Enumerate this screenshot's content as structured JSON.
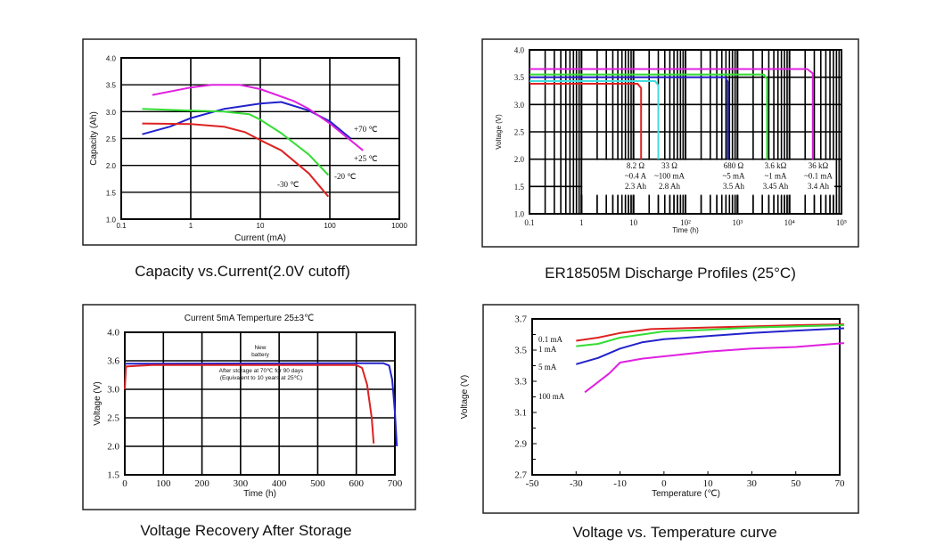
{
  "chart_data": [
    {
      "type": "line",
      "caption": "Capacity vs.Current(2.0V cutoff)",
      "title": "",
      "xlabel": "Current (mA)",
      "ylabel": "Capacity (Ah)",
      "x_scale": "log",
      "xlim": [
        0.1,
        1000
      ],
      "ylim": [
        1.0,
        4.0
      ],
      "xticks": [
        0.1,
        1,
        10,
        100,
        1000
      ],
      "xtick_labels": [
        "0.1",
        "1",
        "10",
        "100",
        "1000"
      ],
      "yticks": [
        1.0,
        1.5,
        2.0,
        2.5,
        3.0,
        3.5,
        4.0
      ],
      "ytick_labels": [
        "1.0",
        "1.5",
        "2.0",
        "2.5",
        "3.0",
        "3.5",
        "4.0"
      ],
      "grid": true,
      "series": [
        {
          "name": "+70 ℃",
          "color": "#2222cc",
          "points": [
            [
              0.2,
              2.58
            ],
            [
              0.5,
              2.72
            ],
            [
              1,
              2.88
            ],
            [
              3,
              3.05
            ],
            [
              10,
              3.15
            ],
            [
              20,
              3.18
            ],
            [
              50,
              3.02
            ],
            [
              100,
              2.82
            ],
            [
              200,
              2.5
            ]
          ]
        },
        {
          "name": "+25 ℃",
          "color": "#e020e0",
          "points": [
            [
              0.28,
              3.31
            ],
            [
              1,
              3.45
            ],
            [
              2,
              3.5
            ],
            [
              5,
              3.5
            ],
            [
              10,
              3.42
            ],
            [
              30,
              3.2
            ],
            [
              50,
              3.05
            ],
            [
              100,
              2.78
            ],
            [
              300,
              2.28
            ]
          ]
        },
        {
          "name": "-20 ℃",
          "color": "#33dd33",
          "points": [
            [
              0.2,
              3.05
            ],
            [
              1,
              3.02
            ],
            [
              3,
              3.0
            ],
            [
              7,
              2.95
            ],
            [
              10,
              2.85
            ],
            [
              20,
              2.6
            ],
            [
              50,
              2.2
            ],
            [
              95,
              1.82
            ]
          ]
        },
        {
          "name": "-30 ℃",
          "color": "#dd2222",
          "points": [
            [
              0.2,
              2.78
            ],
            [
              1,
              2.77
            ],
            [
              3,
              2.72
            ],
            [
              6,
              2.62
            ],
            [
              10,
              2.47
            ],
            [
              20,
              2.28
            ],
            [
              50,
              1.85
            ],
            [
              95,
              1.42
            ]
          ]
        }
      ]
    },
    {
      "type": "line",
      "caption": "ER18505M Discharge Profiles (25°C)",
      "title": "",
      "xlabel": "Time (h)",
      "ylabel": "Voltage (V)",
      "x_scale": "log",
      "xlim": [
        0.1,
        100000
      ],
      "ylim": [
        1.0,
        4.0
      ],
      "xticks": [
        0.1,
        1,
        10,
        100,
        1000,
        10000,
        100000
      ],
      "xtick_labels": [
        "0.1",
        "1",
        "10",
        "10²",
        "10³",
        "10⁴",
        "10⁵"
      ],
      "yticks": [
        1.0,
        1.5,
        2.0,
        2.5,
        3.0,
        3.5,
        4.0
      ],
      "ytick_labels": [
        "1.0",
        "1.5",
        "2.0",
        "2.5",
        "3.0",
        "3.5",
        "4.0"
      ],
      "grid": true,
      "series": [
        {
          "color": "#dd2222",
          "points": [
            [
              0.1,
              3.38
            ],
            [
              12,
              3.38
            ],
            [
              14,
              3.3
            ],
            [
              14,
              2.0
            ]
          ],
          "annotation": [
            "8.2 Ω",
            "~0.4 A",
            "2.3 Ah"
          ]
        },
        {
          "color": "#44dddd",
          "points": [
            [
              0.1,
              3.43
            ],
            [
              26,
              3.43
            ],
            [
              30,
              3.35
            ],
            [
              30,
              2.0
            ]
          ],
          "annotation": [
            "33 Ω",
            "~100 mA",
            "2.8 Ah"
          ]
        },
        {
          "color": "#2222cc",
          "points": [
            [
              0.1,
              3.5
            ],
            [
              580,
              3.5
            ],
            [
              650,
              3.42
            ],
            [
              650,
              2.0
            ]
          ],
          "annotation": [
            "680 Ω",
            "~5 mA",
            "3.5 Ah"
          ]
        },
        {
          "color": "#33dd33",
          "points": [
            [
              0.1,
              3.55
            ],
            [
              3200,
              3.55
            ],
            [
              3700,
              3.47
            ],
            [
              3700,
              2.0
            ]
          ],
          "annotation": [
            "3.6 kΩ",
            "~1 mA",
            "3.45 Ah"
          ]
        },
        {
          "color": "#e020e0",
          "points": [
            [
              0.1,
              3.65
            ],
            [
              22000,
              3.65
            ],
            [
              28000,
              3.57
            ],
            [
              28000,
              2.0
            ]
          ],
          "annotation": [
            "36 kΩ",
            "~0.1 mA",
            "3.4 Ah"
          ]
        }
      ]
    },
    {
      "type": "line",
      "caption": "Voltage Recovery After Storage",
      "title": "Current 5mA  Temperture 25±3℃",
      "xlabel": "Time (h)",
      "ylabel": "Voltage (V)",
      "x_scale": "linear",
      "xlim": [
        0,
        700
      ],
      "y_scale": "tick-spaced",
      "ylim": [
        1.5,
        4.0
      ],
      "xticks": [
        0,
        100,
        200,
        300,
        400,
        500,
        600,
        700
      ],
      "xtick_labels": [
        "0",
        "100",
        "200",
        "300",
        "400",
        "500",
        "600",
        "700"
      ],
      "yticks": [
        1.5,
        2.0,
        2.5,
        3.0,
        3.6,
        4.0
      ],
      "ytick_labels": [
        "1.5",
        "2.0",
        "2.5",
        "3.0",
        "3.6",
        "4.0"
      ],
      "grid": true,
      "annotations": [
        [
          "New",
          "battery"
        ],
        [
          "After storage at 70℃ for 90 days",
          "(Equivalent to 10 years at 25℃)"
        ]
      ],
      "series": [
        {
          "color": "#2222cc",
          "points": [
            [
              0,
              3.54
            ],
            [
              670,
              3.55
            ],
            [
              685,
              3.5
            ],
            [
              693,
              3.2
            ],
            [
              700,
              2.6
            ],
            [
              705,
              2.0
            ]
          ]
        },
        {
          "color": "#dd2222",
          "points": [
            [
              0,
              3.0
            ],
            [
              3,
              3.48
            ],
            [
              70,
              3.51
            ],
            [
              600,
              3.51
            ],
            [
              615,
              3.45
            ],
            [
              628,
              3.1
            ],
            [
              640,
              2.5
            ],
            [
              645,
              2.05
            ]
          ]
        }
      ]
    },
    {
      "type": "line",
      "caption": "Voltage vs. Temperature curve",
      "title": "",
      "xlabel": "Temperature (℃)",
      "ylabel": "Voltage (V)",
      "x_scale": "tick-spaced",
      "xlim": [
        -50,
        80
      ],
      "ylim": [
        2.7,
        3.7
      ],
      "xticks": [
        -50,
        -30,
        -10,
        0,
        10,
        30,
        50,
        70
      ],
      "xtick_labels": [
        "-50",
        "-30",
        "-10",
        "0",
        "10",
        "30",
        "50",
        "70"
      ],
      "yticks": [
        2.7,
        2.9,
        3.1,
        3.3,
        3.5,
        3.7
      ],
      "ytick_labels": [
        "2.7",
        "2.9",
        "3.1",
        "3.3",
        "3.5",
        "3.7"
      ],
      "grid": false,
      "series": [
        {
          "name": "0.1 mA",
          "color": "#dd2222",
          "points": [
            [
              -30,
              3.56
            ],
            [
              -20,
              3.58
            ],
            [
              -10,
              3.61
            ],
            [
              -3,
              3.635
            ],
            [
              10,
              3.645
            ],
            [
              30,
              3.652
            ],
            [
              50,
              3.66
            ],
            [
              72,
              3.665
            ]
          ]
        },
        {
          "name": "1 mA",
          "color": "#33dd33",
          "points": [
            [
              -30,
              3.525
            ],
            [
              -20,
              3.54
            ],
            [
              -10,
              3.58
            ],
            [
              0,
              3.62
            ],
            [
              10,
              3.63
            ],
            [
              30,
              3.645
            ],
            [
              50,
              3.652
            ],
            [
              72,
              3.66
            ]
          ]
        },
        {
          "name": "5 mA",
          "color": "#2222cc",
          "points": [
            [
              -30,
              3.41
            ],
            [
              -20,
              3.45
            ],
            [
              -10,
              3.51
            ],
            [
              -5,
              3.55
            ],
            [
              0,
              3.57
            ],
            [
              10,
              3.59
            ],
            [
              30,
              3.61
            ],
            [
              50,
              3.625
            ],
            [
              72,
              3.64
            ]
          ]
        },
        {
          "name": "100 mA",
          "color": "#e020e0",
          "points": [
            [
              -26,
              3.23
            ],
            [
              -15,
              3.35
            ],
            [
              -10,
              3.42
            ],
            [
              -5,
              3.445
            ],
            [
              0,
              3.46
            ],
            [
              10,
              3.49
            ],
            [
              30,
              3.51
            ],
            [
              50,
              3.52
            ],
            [
              72,
              3.545
            ]
          ]
        }
      ]
    }
  ]
}
